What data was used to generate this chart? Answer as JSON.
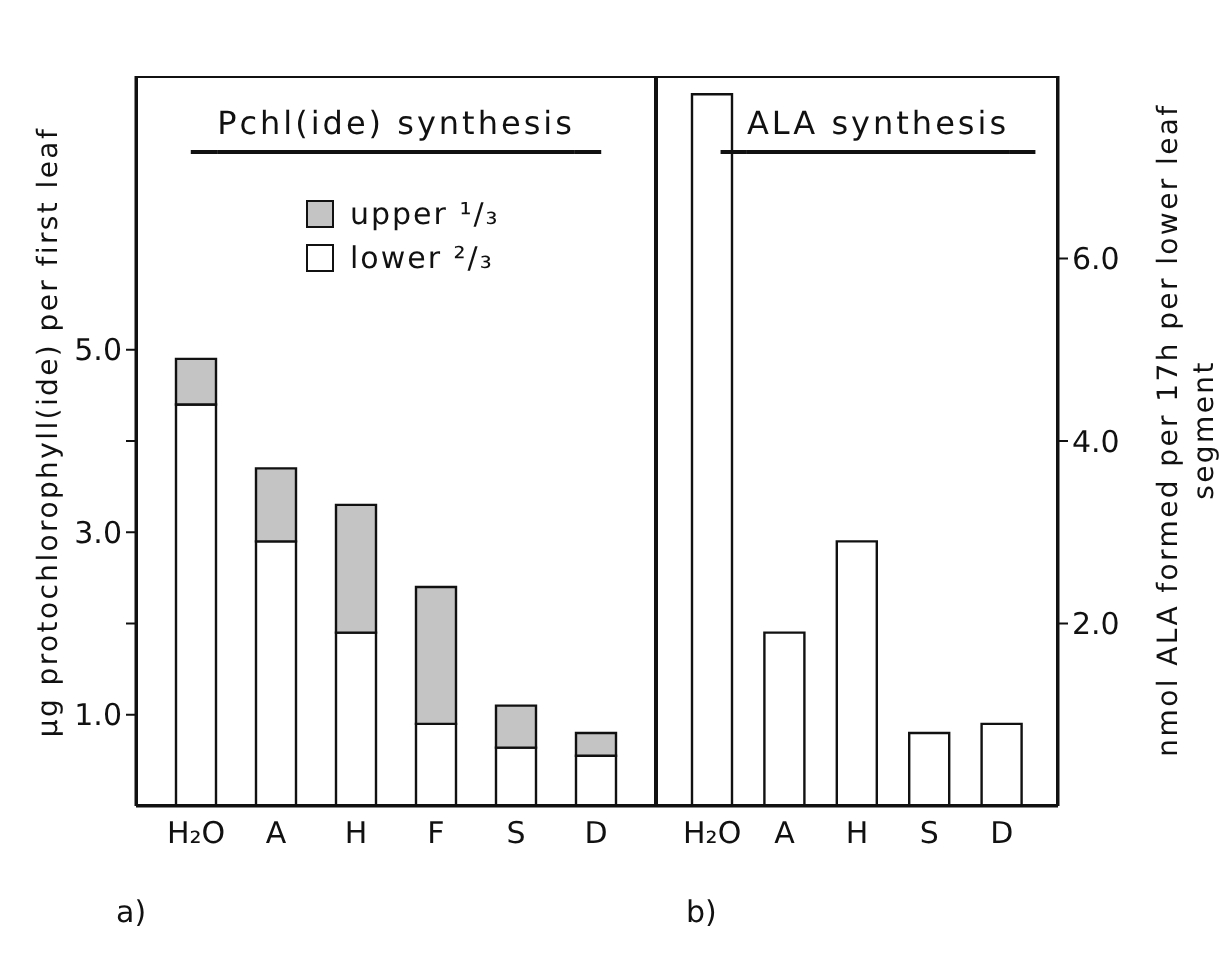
{
  "chart_data": [
    {
      "type": "bar",
      "title": "Pchl(ide) synthesis",
      "ylabel": "µg protochlorophyll(ide) per first leaf",
      "categories": [
        "H₂O",
        "A",
        "H",
        "F",
        "S",
        "D"
      ],
      "stacked": true,
      "legend": "top",
      "series": [
        {
          "name": "lower ²/₃",
          "color": "#ffffff",
          "values": [
            4.4,
            2.9,
            1.9,
            0.9,
            0.64,
            0.55
          ]
        },
        {
          "name": "upper ¹/₃",
          "color": "#c4c4c4",
          "values": [
            0.5,
            0.8,
            1.4,
            1.5,
            0.46,
            0.25
          ]
        }
      ],
      "ylim": [
        0,
        8
      ],
      "yticks": [
        {
          "value": 1,
          "label": "1.0"
        },
        {
          "value": 2,
          "label": null
        },
        {
          "value": 3,
          "label": "3.0"
        },
        {
          "value": 4,
          "label": null
        },
        {
          "value": 5,
          "label": "5.0"
        }
      ],
      "grid": false,
      "annotations": [
        "a)"
      ]
    },
    {
      "type": "bar",
      "title": "ALA synthesis",
      "ylabel": "nmol ALA formed per 17h per lower leaf segment",
      "categories": [
        "H₂O",
        "A",
        "H",
        "S",
        "D"
      ],
      "series": [
        {
          "color": "#ffffff",
          "values": [
            7.8,
            1.9,
            2.9,
            0.8,
            0.9
          ]
        }
      ],
      "ylim": [
        0,
        8
      ],
      "yticks": [
        {
          "value": 2,
          "label": "2.0"
        },
        {
          "value": 4,
          "label": "4.0"
        },
        {
          "value": 6,
          "label": "6.0"
        }
      ],
      "grid": false,
      "annotations": [
        "b)"
      ]
    }
  ]
}
